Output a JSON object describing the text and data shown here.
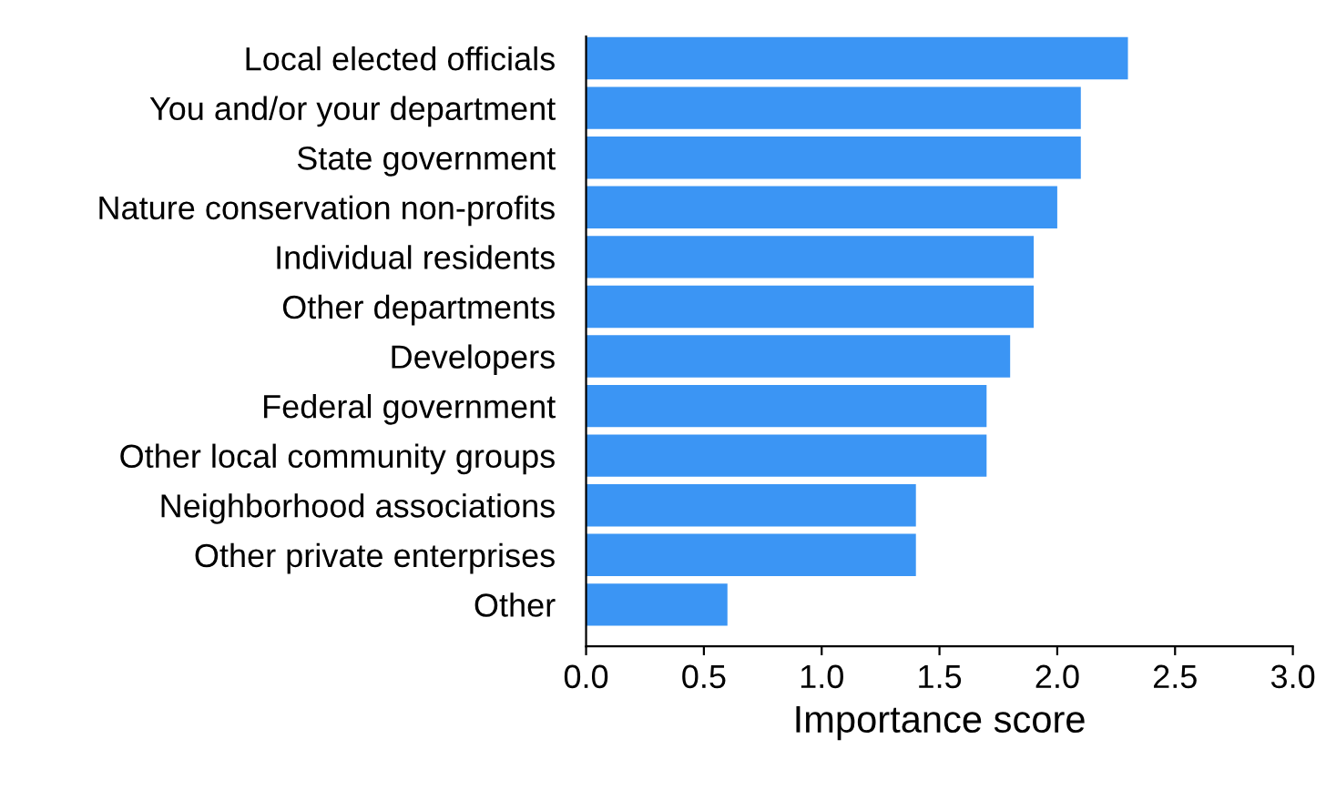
{
  "chart_data": {
    "type": "bar",
    "orientation": "horizontal",
    "xlabel": "Importance score",
    "categories": [
      "Local elected officials",
      "You and/or your department",
      "State government",
      "Nature conservation non-profits",
      "Individual residents",
      "Other departments",
      "Developers",
      "Federal government",
      "Other local community groups",
      "Neighborhood associations",
      "Other private enterprises",
      "Other"
    ],
    "values": [
      2.3,
      2.1,
      2.1,
      2.0,
      1.9,
      1.9,
      1.8,
      1.7,
      1.7,
      1.4,
      1.4,
      0.6
    ],
    "color": "#3b95f4",
    "xlim": [
      0,
      3
    ],
    "xticks": [
      {
        "value": 0,
        "label": "0.0"
      },
      {
        "value": 0.5,
        "label": "0.5"
      },
      {
        "value": 1,
        "label": "1.0"
      },
      {
        "value": 1.5,
        "label": "1.5"
      },
      {
        "value": 2,
        "label": "2.0"
      },
      {
        "value": 2.5,
        "label": "2.5"
      },
      {
        "value": 3,
        "label": "3.0"
      }
    ],
    "grid": false
  }
}
